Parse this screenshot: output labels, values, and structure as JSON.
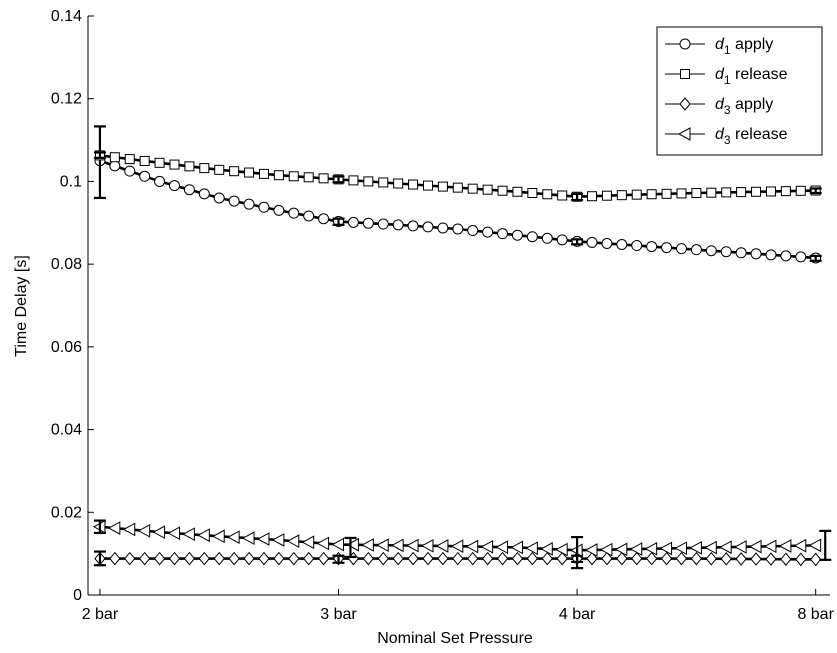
{
  "chart_data": {
    "type": "line",
    "xlabel": "Nominal Set Pressure",
    "ylabel": "Time Delay [s]",
    "categories": [
      "2 bar",
      "3 bar",
      "4 bar",
      "8 bar"
    ],
    "ylim": [
      0,
      0.14
    ],
    "yticks": [
      "0",
      "0.02",
      "0.04",
      "0.06",
      "0.08",
      "0.1",
      "0.12",
      "0.14"
    ],
    "legend_position": "top-right",
    "grid": false,
    "series": [
      {
        "name_sym": "d",
        "name_sub": "1",
        "name_rest": " apply",
        "marker": "circle",
        "x": [
          0,
          0.25,
          0.5,
          0.75,
          1,
          1.25,
          1.5,
          1.75,
          2,
          2.25,
          2.5,
          2.75,
          3
        ],
        "values": [
          0.105,
          0.1,
          0.096,
          0.093,
          0.0903,
          0.0895,
          0.0885,
          0.087,
          0.0855,
          0.0845,
          0.0835,
          0.0825,
          0.0815
        ],
        "error_bars": [
          {
            "x": 0,
            "low": 0.096,
            "high": 0.1133
          },
          {
            "x": 1,
            "low": 0.0895,
            "high": 0.091
          },
          {
            "x": 2,
            "low": 0.0848,
            "high": 0.086
          },
          {
            "x": 3,
            "low": 0.0808,
            "high": 0.082
          }
        ]
      },
      {
        "name_sym": "d",
        "name_sub": "1",
        "name_rest": " release",
        "marker": "square",
        "x": [
          0,
          0.25,
          0.5,
          0.75,
          1,
          1.25,
          1.5,
          1.75,
          2,
          2.25,
          2.5,
          2.75,
          3
        ],
        "values": [
          0.1063,
          0.1045,
          0.1028,
          0.1015,
          0.1005,
          0.0995,
          0.0985,
          0.0975,
          0.0963,
          0.0968,
          0.0972,
          0.0975,
          0.0978
        ],
        "error_bars": [
          {
            "x": 0,
            "low": 0.1057,
            "high": 0.107
          },
          {
            "x": 1,
            "low": 0.0998,
            "high": 0.1012
          },
          {
            "x": 2,
            "low": 0.0955,
            "high": 0.097
          },
          {
            "x": 3,
            "low": 0.0972,
            "high": 0.0983
          }
        ]
      },
      {
        "name_sym": "d",
        "name_sub": "3",
        "name_rest": " apply",
        "marker": "diamond",
        "x": [
          0,
          0.25,
          0.5,
          0.75,
          1,
          1.25,
          1.5,
          1.75,
          2,
          2.25,
          2.5,
          2.75,
          3
        ],
        "values": [
          0.0088,
          0.0088,
          0.0088,
          0.0088,
          0.0088,
          0.0088,
          0.0088,
          0.0088,
          0.0088,
          0.0088,
          0.0088,
          0.0087,
          0.0086
        ],
        "error_bars": [
          {
            "x": 0,
            "low": 0.0072,
            "high": 0.0105
          },
          {
            "x": 1,
            "low": 0.0078,
            "high": 0.0095
          },
          {
            "x": 2,
            "low": 0.008,
            "high": 0.0095
          }
        ]
      },
      {
        "name_sym": "d",
        "name_sub": "3",
        "name_rest": " release",
        "marker": "triangle-left",
        "x": [
          0,
          0.25,
          0.5,
          0.75,
          1,
          1.25,
          1.5,
          1.75,
          2,
          2.25,
          2.5,
          2.75,
          3
        ],
        "values": [
          0.0165,
          0.0152,
          0.0142,
          0.0133,
          0.0122,
          0.012,
          0.0118,
          0.0115,
          0.0108,
          0.0111,
          0.0114,
          0.0117,
          0.012
        ],
        "error_bars": [
          {
            "x": 0,
            "low": 0.015,
            "high": 0.018
          },
          {
            "x": 1.05,
            "low": 0.0092,
            "high": 0.0138
          },
          {
            "x": 2,
            "low": 0.0065,
            "high": 0.014
          },
          {
            "x": 3.04,
            "low": 0.0085,
            "high": 0.0155
          }
        ]
      }
    ]
  }
}
